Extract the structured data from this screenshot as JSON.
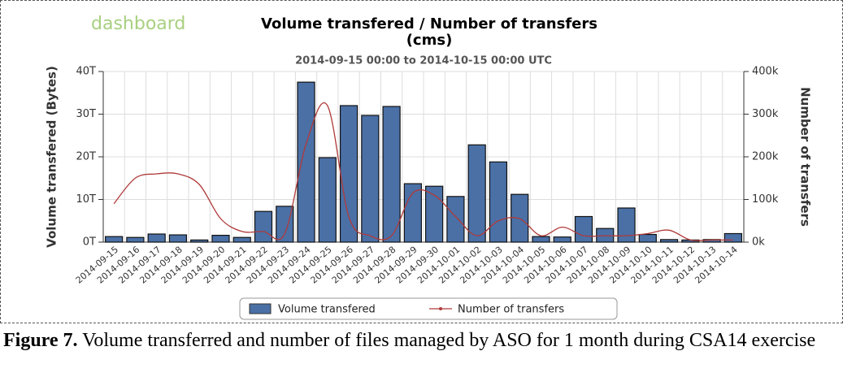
{
  "chart_data": {
    "type": "bar_line",
    "logo": "dashboard",
    "title_lines": [
      "Volume transfered / Number of transfers",
      "(cms)"
    ],
    "subtitle": "2014-09-15 00:00 to 2014-10-15 00:00 UTC",
    "ylabel": "Volume transfered (Bytes)",
    "y2label": "Number of transfers",
    "categories": [
      "2014-09-15",
      "2014-09-16",
      "2014-09-17",
      "2014-09-18",
      "2014-09-19",
      "2014-09-20",
      "2014-09-21",
      "2014-09-22",
      "2014-09-23",
      "2014-09-24",
      "2014-09-25",
      "2014-09-26",
      "2014-09-27",
      "2014-09-28",
      "2014-09-29",
      "2014-09-30",
      "2014-10-01",
      "2014-10-02",
      "2014-10-03",
      "2014-10-04",
      "2014-10-05",
      "2014-10-06",
      "2014-10-07",
      "2014-10-08",
      "2014-10-09",
      "2014-10-10",
      "2014-10-11",
      "2014-10-12",
      "2014-10-13",
      "2014-10-14"
    ],
    "series": [
      {
        "name": "Volume transfered",
        "color": "#4a70a6",
        "kind": "bar",
        "values": [
          1.3,
          1.1,
          1.9,
          1.7,
          0.5,
          1.6,
          1.1,
          7.2,
          8.4,
          37.5,
          19.8,
          32,
          29.7,
          31.8,
          13.7,
          13.1,
          10.7,
          22.8,
          18.8,
          11.2,
          1.3,
          1.2,
          6.0,
          3.2,
          8.0,
          1.8,
          0.6,
          0.5,
          0.6,
          2.0
        ]
      },
      {
        "name": "Number of transfers",
        "color": "#b03a3a",
        "kind": "line",
        "axis": "y2",
        "values": [
          90,
          150,
          160,
          160,
          135,
          55,
          25,
          25,
          20,
          230,
          320,
          60,
          15,
          15,
          115,
          110,
          60,
          15,
          50,
          55,
          15,
          35,
          15,
          15,
          15,
          20,
          28,
          5,
          5,
          5
        ]
      }
    ],
    "ylim": [
      0,
      40
    ],
    "yticks": [
      {
        "value": 0,
        "label": "0T"
      },
      {
        "value": 10,
        "label": "10T"
      },
      {
        "value": 20,
        "label": "20T"
      },
      {
        "value": 30,
        "label": "30T"
      },
      {
        "value": 40,
        "label": "40T"
      }
    ],
    "y2lim": [
      0,
      400
    ],
    "y2ticks": [
      {
        "value": 0,
        "label": "0k"
      },
      {
        "value": 100,
        "label": "100k"
      },
      {
        "value": 200,
        "label": "200k"
      },
      {
        "value": 300,
        "label": "300k"
      },
      {
        "value": 400,
        "label": "400k"
      }
    ],
    "grid": true
  },
  "caption": {
    "label": "Figure 7.",
    "text": "Volume transferred and number of files managed by ASO for 1 month during CSA14 exercise"
  }
}
